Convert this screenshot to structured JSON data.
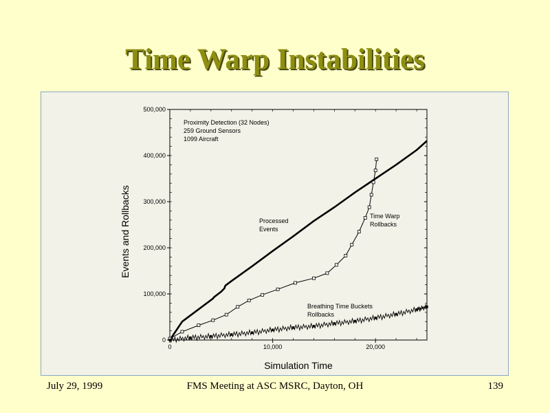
{
  "slide": {
    "title": "Time Warp Instabilities"
  },
  "footer": {
    "date": "July 29,  1999",
    "meeting": "FMS Meeting at ASC MSRC, Dayton, OH",
    "page": "139"
  },
  "chart_data": {
    "type": "line",
    "xlabel": "Simulation Time",
    "ylabel": "Events and Rollbacks",
    "xlim": [
      0,
      25000
    ],
    "ylim": [
      0,
      500000
    ],
    "x_ticks": [
      0,
      10000,
      20000
    ],
    "x_tick_labels": [
      "0",
      "10,000",
      "20,000"
    ],
    "y_ticks": [
      0,
      100000,
      200000,
      300000,
      400000,
      500000
    ],
    "y_tick_labels": [
      "0",
      "100,000",
      "200,000",
      "300,000",
      "400,000",
      "500,000"
    ],
    "grid": false,
    "annotation_lines": [
      "Proximity Detection (32 Nodes)",
      "259 Ground Sensors",
      "1099 Aircraft"
    ],
    "series": [
      {
        "name": "Processed Events",
        "label_lines": [
          "Processed",
          "Events"
        ],
        "style": "thick-line",
        "color": "#000000",
        "x": [
          0,
          1200,
          3000,
          4200,
          4300,
          5000,
          5300,
          5400,
          6000,
          8000,
          10000,
          12000,
          14000,
          16000,
          18000,
          20000,
          22000,
          24000,
          25000
        ],
        "y": [
          0,
          40000,
          70000,
          90000,
          93000,
          105000,
          112000,
          118000,
          128000,
          160000,
          193000,
          225000,
          258000,
          288000,
          320000,
          350000,
          380000,
          412000,
          432000
        ]
      },
      {
        "name": "Time Warp Rollbacks",
        "label_lines": [
          "Time Warp",
          "Rollbacks"
        ],
        "style": "line-square-markers",
        "color": "#000000",
        "x": [
          0,
          1200,
          2800,
          4200,
          5500,
          6600,
          7700,
          9000,
          10500,
          12200,
          14000,
          15300,
          16200,
          17100,
          17700,
          18400,
          19000,
          19400,
          19600,
          19800,
          20000,
          20100
        ],
        "y": [
          3000,
          18000,
          32000,
          43000,
          55000,
          72000,
          86000,
          98000,
          110000,
          124000,
          134000,
          145000,
          163000,
          183000,
          207000,
          235000,
          265000,
          288000,
          315000,
          342000,
          368000,
          392000
        ]
      },
      {
        "name": "Breathing Time Buckets Rollbacks",
        "label_lines": [
          "Breathing Time Buckets",
          "Rollbacks"
        ],
        "style": "noisy-line-markers",
        "color": "#000000",
        "x": [
          0,
          2000,
          4000,
          6000,
          8000,
          10000,
          12000,
          14000,
          16000,
          18000,
          20000,
          22000,
          24000,
          25000
        ],
        "y": [
          0,
          5000,
          8000,
          12000,
          16000,
          22000,
          27000,
          30000,
          36000,
          41000,
          48000,
          56000,
          66000,
          72000
        ]
      }
    ]
  }
}
